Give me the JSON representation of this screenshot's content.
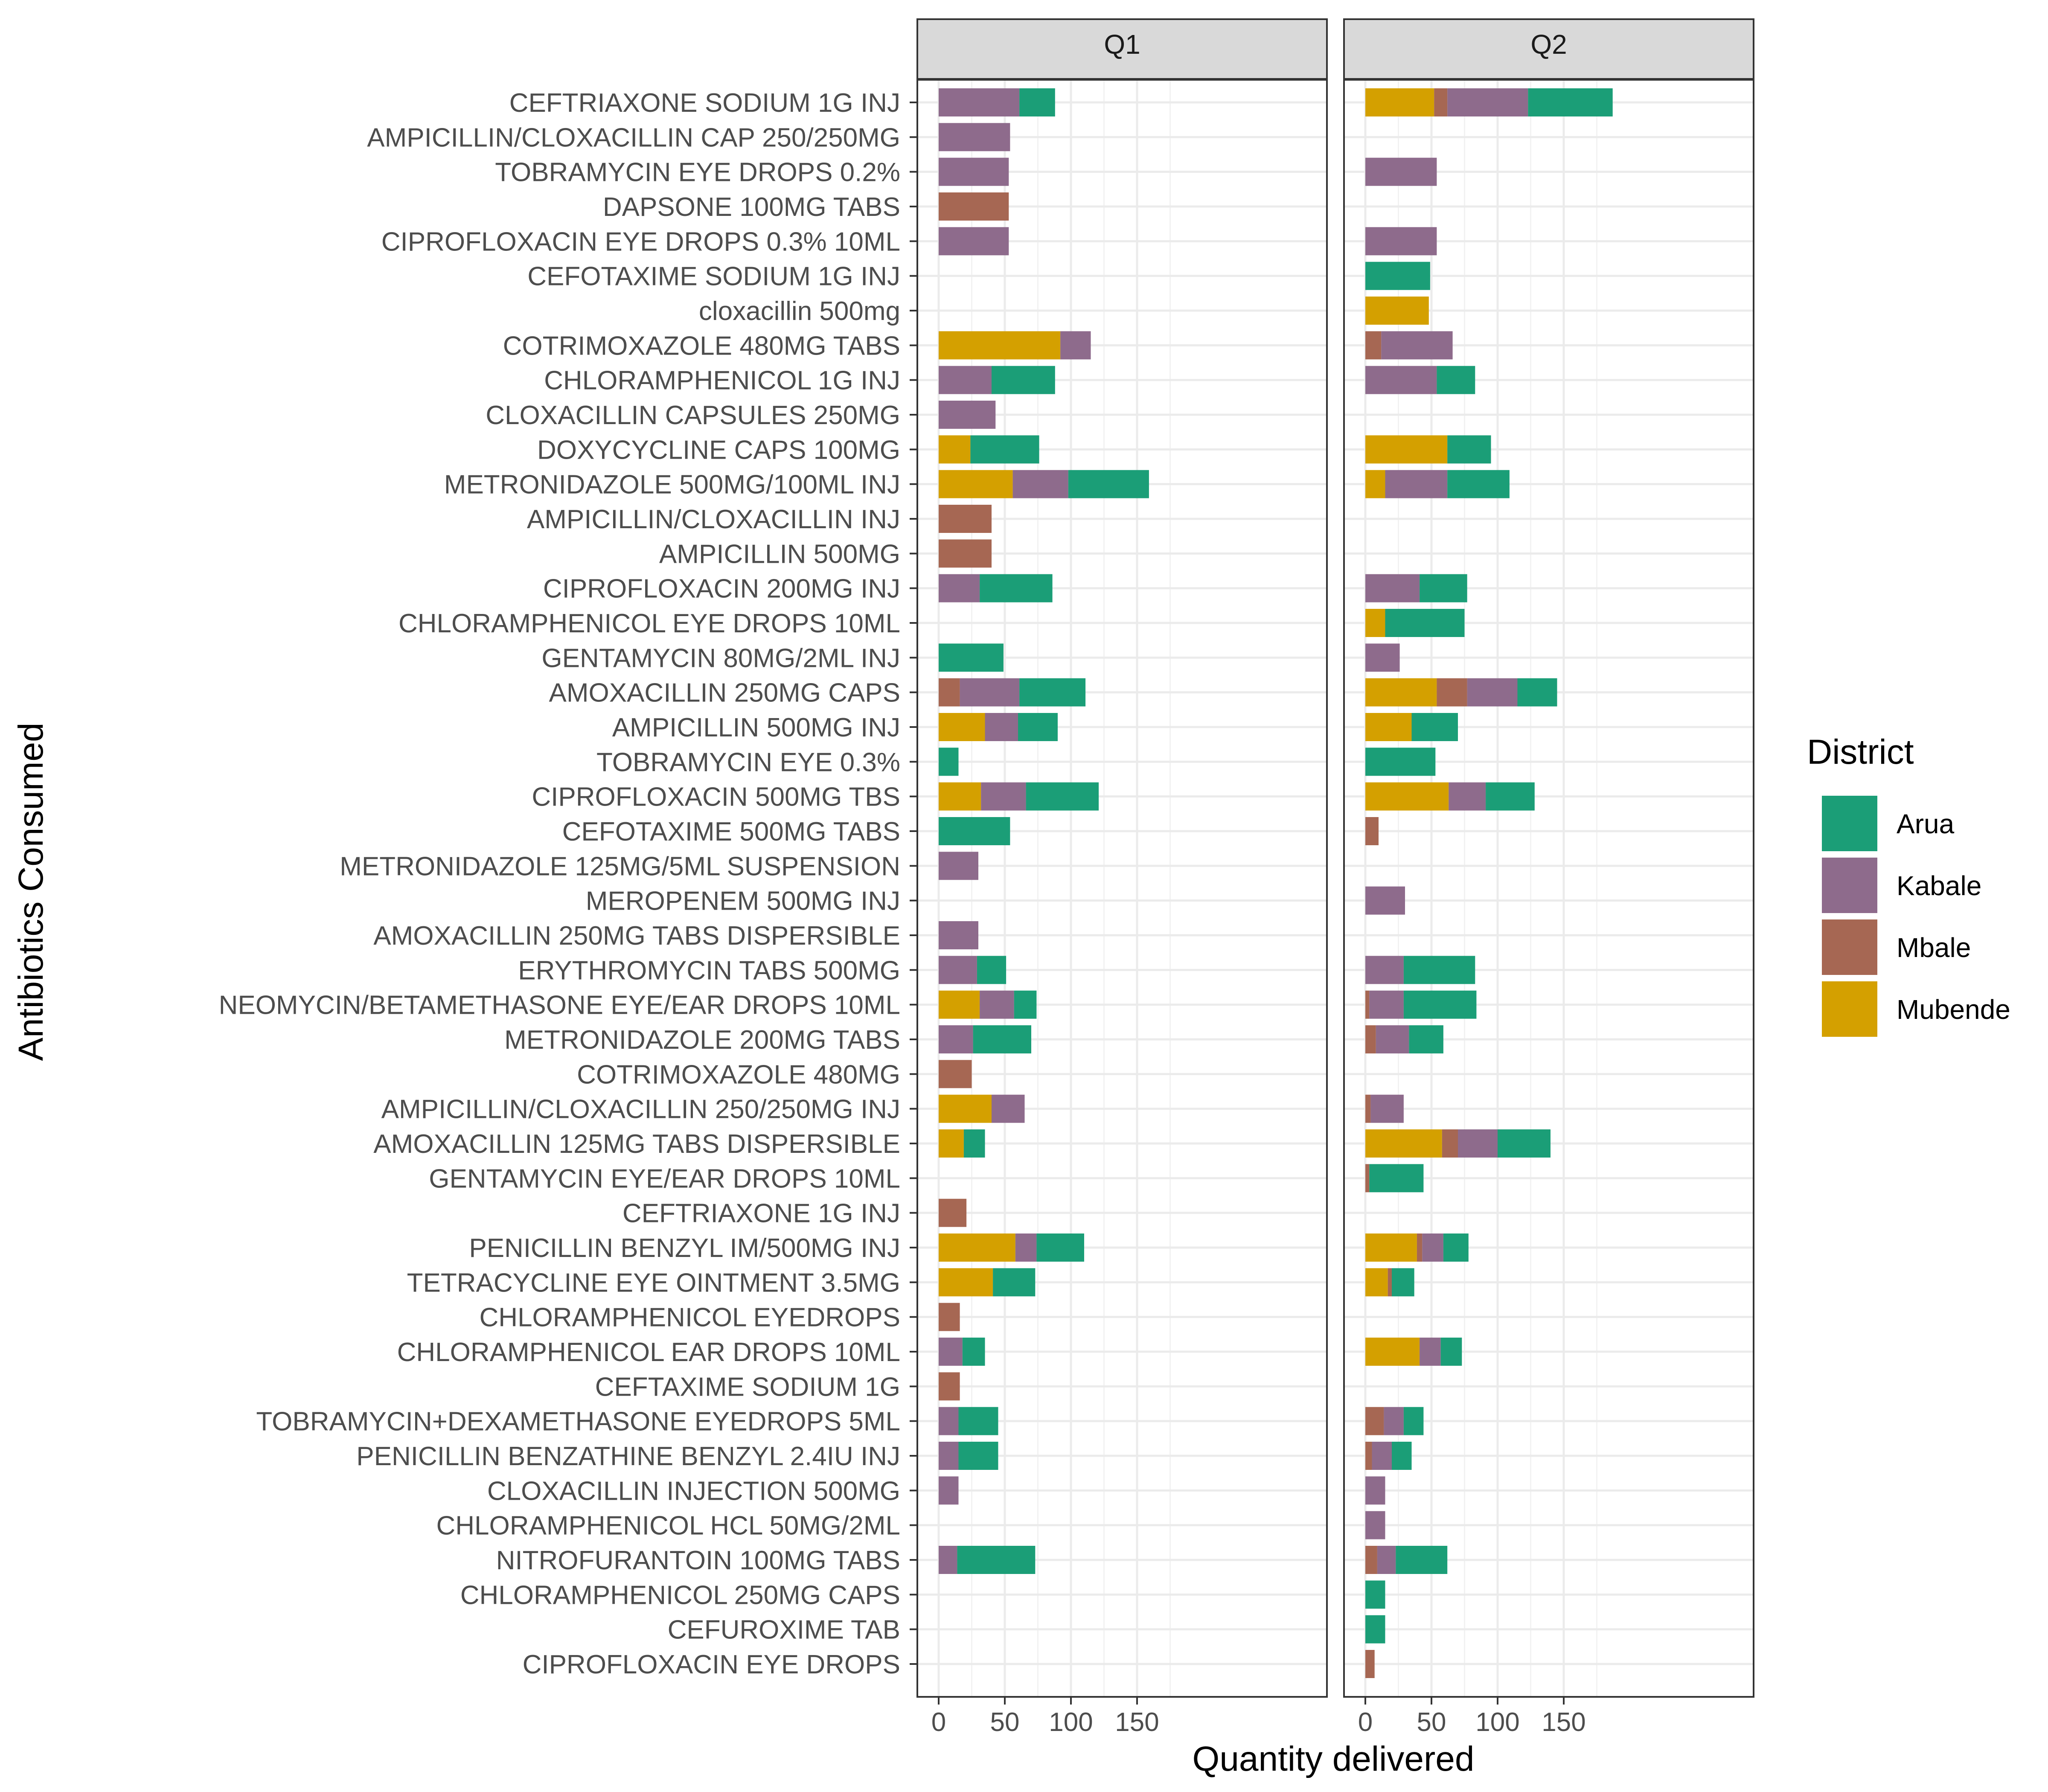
{
  "chart_data": {
    "type": "bar",
    "orientation": "horizontal",
    "stacked": true,
    "xlabel": "Quantity delivered",
    "ylabel": "Antibiotics Consumed",
    "xlim": [
      0,
      190
    ],
    "x_ticks": [
      0,
      50,
      100,
      150
    ],
    "grid": true,
    "legend": {
      "title": "District",
      "position": "right",
      "items": [
        {
          "name": "Arua",
          "color": "#1b9e77"
        },
        {
          "name": "Kabale",
          "color": "#8e6b8c"
        },
        {
          "name": "Mbale",
          "color": "#a66753"
        },
        {
          "name": "Mubende",
          "color": "#d4a000"
        }
      ]
    },
    "stack_order": [
      "Mubende",
      "Mbale",
      "Kabale",
      "Arua"
    ],
    "categories": [
      "CEFTRIAXONE SODIUM 1G INJ",
      "AMPICILLIN/CLOXACILLIN CAP 250/250MG",
      "TOBRAMYCIN EYE DROPS 0.2%",
      "DAPSONE 100MG TABS",
      "CIPROFLOXACIN EYE DROPS 0.3% 10ML",
      "CEFOTAXIME SODIUM 1G INJ",
      "cloxacillin 500mg",
      "COTRIMOXAZOLE 480MG TABS",
      "CHLORAMPHENICOL 1G INJ",
      "CLOXACILLIN CAPSULES 250MG",
      "DOXYCYCLINE CAPS 100MG",
      "METRONIDAZOLE 500MG/100ML INJ",
      "AMPICILLIN/CLOXACILLIN INJ",
      "AMPICILLIN 500MG",
      "CIPROFLOXACIN 200MG INJ",
      "CHLORAMPHENICOL EYE DROPS 10ML",
      "GENTAMYCIN 80MG/2ML INJ",
      "AMOXACILLIN 250MG CAPS",
      "AMPICILLIN 500MG INJ",
      "TOBRAMYCIN EYE 0.3%",
      "CIPROFLOXACIN 500MG TBS",
      "CEFOTAXIME 500MG TABS",
      "METRONIDAZOLE 125MG/5ML SUSPENSION",
      "MEROPENEM 500MG INJ",
      "AMOXACILLIN 250MG TABS DISPERSIBLE",
      "ERYTHROMYCIN TABS 500MG",
      "NEOMYCIN/BETAMETHASONE EYE/EAR DROPS 10ML",
      "METRONIDAZOLE 200MG TABS",
      "COTRIMOXAZOLE 480MG",
      "AMPICILLIN/CLOXACILLIN 250/250MG INJ",
      "AMOXACILLIN 125MG TABS DISPERSIBLE",
      "GENTAMYCIN EYE/EAR DROPS 10ML",
      "CEFTRIAXONE 1G INJ",
      "PENICILLIN BENZYL IM/500MG INJ",
      "TETRACYCLINE EYE OINTMENT 3.5MG",
      "CHLORAMPHENICOL EYEDROPS",
      "CHLORAMPHENICOL EAR DROPS 10ML",
      "CEFTAXIME SODIUM 1G",
      "TOBRAMYCIN+DEXAMETHASONE EYEDROPS 5ML",
      "PENICILLIN BENZATHINE BENZYL 2.4IU INJ",
      "CLOXACILLIN INJECTION 500MG",
      "CHLORAMPHENICOL HCL 50MG/2ML",
      "NITROFURANTOIN 100MG TABS",
      "CHLORAMPHENICOL 250MG CAPS",
      "CEFUROXIME TAB",
      "CIPROFLOXACIN EYE DROPS"
    ],
    "panels": [
      {
        "label": "Q1",
        "series": [
          {
            "name": "Mubende",
            "values": [
              0,
              0,
              0,
              0,
              0,
              0,
              0,
              92,
              0,
              0,
              24,
              56,
              0,
              0,
              0,
              0,
              0,
              0,
              35,
              0,
              32,
              0,
              0,
              0,
              0,
              0,
              31,
              0,
              0,
              40,
              19,
              0,
              0,
              58,
              41,
              0,
              0,
              0,
              0,
              0,
              0,
              0,
              0,
              0,
              0,
              0
            ]
          },
          {
            "name": "Mbale",
            "values": [
              0,
              0,
              0,
              53,
              0,
              0,
              0,
              0,
              0,
              0,
              0,
              0,
              40,
              40,
              0,
              0,
              0,
              16,
              0,
              0,
              0,
              0,
              0,
              0,
              0,
              0,
              0,
              0,
              25,
              0,
              0,
              0,
              21,
              0,
              0,
              16,
              0,
              16,
              0,
              0,
              0,
              0,
              0,
              0,
              0,
              0
            ]
          },
          {
            "name": "Kabale",
            "values": [
              61,
              54,
              53,
              0,
              53,
              0,
              0,
              23,
              40,
              43,
              0,
              42,
              0,
              0,
              31,
              0,
              0,
              45,
              25,
              0,
              34,
              0,
              30,
              0,
              30,
              29,
              26,
              26,
              0,
              25,
              0,
              0,
              0,
              16,
              0,
              0,
              18,
              0,
              15,
              15,
              15,
              0,
              14,
              0,
              0,
              0
            ]
          },
          {
            "name": "Arua",
            "values": [
              27,
              0,
              0,
              0,
              0,
              0,
              0,
              0,
              48,
              0,
              52,
              61,
              0,
              0,
              55,
              0,
              49,
              50,
              30,
              15,
              55,
              54,
              0,
              0,
              0,
              22,
              17,
              44,
              0,
              0,
              16,
              0,
              0,
              36,
              32,
              0,
              17,
              0,
              30,
              30,
              0,
              0,
              59,
              0,
              0,
              0
            ]
          }
        ]
      },
      {
        "label": "Q2",
        "series": [
          {
            "name": "Mubende",
            "values": [
              52,
              0,
              0,
              0,
              0,
              0,
              48,
              0,
              0,
              0,
              62,
              15,
              0,
              0,
              0,
              15,
              0,
              54,
              35,
              0,
              63,
              0,
              0,
              0,
              0,
              0,
              0,
              0,
              0,
              0,
              58,
              0,
              0,
              39,
              17,
              0,
              41,
              0,
              0,
              0,
              0,
              0,
              0,
              0,
              0,
              0
            ]
          },
          {
            "name": "Mbale",
            "values": [
              10,
              0,
              0,
              0,
              0,
              0,
              0,
              12,
              0,
              0,
              0,
              0,
              0,
              0,
              0,
              0,
              0,
              23,
              0,
              0,
              0,
              10,
              0,
              0,
              0,
              0,
              3,
              8,
              0,
              4,
              12,
              3,
              0,
              4,
              3,
              0,
              0,
              0,
              14,
              5,
              0,
              0,
              9,
              0,
              0,
              7
            ]
          },
          {
            "name": "Kabale",
            "values": [
              61,
              0,
              54,
              0,
              54,
              0,
              0,
              54,
              54,
              0,
              0,
              47,
              0,
              0,
              41,
              0,
              26,
              38,
              0,
              0,
              28,
              0,
              0,
              30,
              0,
              29,
              26,
              25,
              0,
              25,
              30,
              0,
              0,
              16,
              0,
              0,
              16,
              0,
              15,
              15,
              15,
              15,
              14,
              0,
              0,
              0
            ]
          },
          {
            "name": "Arua",
            "values": [
              64,
              0,
              0,
              0,
              0,
              49,
              0,
              0,
              29,
              0,
              33,
              47,
              0,
              0,
              36,
              60,
              0,
              30,
              35,
              53,
              37,
              0,
              0,
              0,
              0,
              54,
              55,
              26,
              0,
              0,
              40,
              41,
              0,
              19,
              17,
              0,
              16,
              0,
              15,
              15,
              0,
              0,
              39,
              15,
              15,
              0
            ]
          }
        ]
      }
    ]
  }
}
